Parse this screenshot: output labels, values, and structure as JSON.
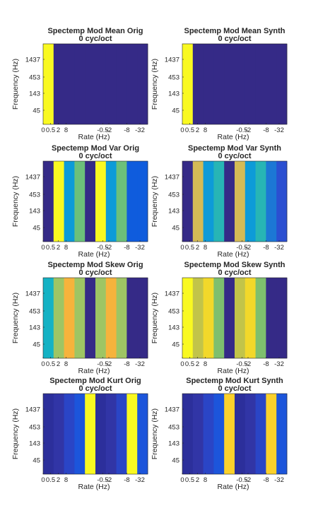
{
  "chart_data": [
    {
      "type": "heatmap",
      "title": "Spectemp Mod Mean Orig",
      "subtitle": "0 cyc/oct",
      "xlabel": "Rate (Hz)",
      "ylabel": "Frequency (Hz)",
      "x_ticks": [
        "0",
        "0.5",
        "2",
        "8",
        "-0.5",
        "-2",
        "-8",
        "-32"
      ],
      "y_ticks": [
        "1437",
        "453",
        "143",
        "45"
      ],
      "column_colors": [
        "#f9f921",
        "#352a87",
        "#352a87",
        "#352a87",
        "#352a87",
        "#352a87",
        "#352a87",
        "#352a87",
        "#352a87",
        "#352a87"
      ]
    },
    {
      "type": "heatmap",
      "title": "Spectemp Mod Mean Synth",
      "subtitle": "0 cyc/oct",
      "xlabel": "Rate (Hz)",
      "ylabel": "Frequency (Hz)",
      "x_ticks": [
        "0",
        "0.5",
        "2",
        "8",
        "-0.5",
        "-2",
        "-8",
        "-32"
      ],
      "y_ticks": [
        "1437",
        "453",
        "143",
        "45"
      ],
      "column_colors": [
        "#f9f921",
        "#352a87",
        "#352a87",
        "#352a87",
        "#352a87",
        "#352a87",
        "#352a87",
        "#352a87",
        "#352a87",
        "#352a87"
      ]
    },
    {
      "type": "heatmap",
      "title": "Spectemp Mod Var Orig",
      "subtitle": "0 cyc/oct",
      "xlabel": "Rate (Hz)",
      "ylabel": "Frequency (Hz)",
      "x_ticks": [
        "0",
        "0.5",
        "2",
        "8",
        "-0.5",
        "-2",
        "-8",
        "-32"
      ],
      "y_ticks": [
        "1437",
        "453",
        "143",
        "45"
      ],
      "column_colors": [
        "#352a87",
        "#f9f921",
        "#0d9bd8",
        "#6cc07a",
        "#352a87",
        "#f9f921",
        "#0d9bd8",
        "#6cc07a",
        "#0f5cdd",
        "#0f5cdd"
      ]
    },
    {
      "type": "heatmap",
      "title": "Spectemp Mod Var Synth",
      "subtitle": "0 cyc/oct",
      "xlabel": "Rate (Hz)",
      "ylabel": "Frequency (Hz)",
      "x_ticks": [
        "0",
        "0.5",
        "2",
        "8",
        "-0.5",
        "-2",
        "-8",
        "-32"
      ],
      "y_ticks": [
        "1437",
        "453",
        "143",
        "45"
      ],
      "column_colors": [
        "#352a87",
        "#d4bb56",
        "#0d9bd8",
        "#27b5b5",
        "#352a87",
        "#d4bb56",
        "#0d9bd8",
        "#27b5b5",
        "#1c77d5",
        "#2b4fd1"
      ]
    },
    {
      "type": "heatmap",
      "title": "Spectemp Mod Skew Orig",
      "subtitle": "0 cyc/oct",
      "xlabel": "Rate (Hz)",
      "ylabel": "Frequency (Hz)",
      "x_ticks": [
        "0",
        "0.5",
        "2",
        "8",
        "-0.5",
        "-2",
        "-8",
        "-32"
      ],
      "y_ticks": [
        "1437",
        "453",
        "143",
        "45"
      ],
      "column_colors": [
        "#14b2c4",
        "#9ec564",
        "#f6b33c",
        "#9ec564",
        "#352a87",
        "#9ec564",
        "#f6b33c",
        "#9ec564",
        "#352a87",
        "#352a87"
      ]
    },
    {
      "type": "heatmap",
      "title": "Spectemp Mod Skew Synth",
      "subtitle": "0 cyc/oct",
      "xlabel": "Rate (Hz)",
      "ylabel": "Frequency (Hz)",
      "x_ticks": [
        "0",
        "0.5",
        "2",
        "8",
        "-0.5",
        "-2",
        "-8",
        "-32"
      ],
      "y_ticks": [
        "1437",
        "453",
        "143",
        "45"
      ],
      "column_colors": [
        "#f9f921",
        "#c2c449",
        "#f2d82a",
        "#7ebf6e",
        "#352a87",
        "#c2c449",
        "#f2d82a",
        "#7ebf6e",
        "#352a87",
        "#352a87"
      ]
    },
    {
      "type": "heatmap",
      "title": "Spectemp Mod Kurt Orig",
      "subtitle": "0 cyc/oct",
      "xlabel": "Rate (Hz)",
      "ylabel": "Frequency (Hz)",
      "x_ticks": [
        "0",
        "0.5",
        "2",
        "8",
        "-0.5",
        "-2",
        "-8",
        "-32"
      ],
      "y_ticks": [
        "1437",
        "453",
        "143",
        "45"
      ],
      "column_colors": [
        "#2c2f9b",
        "#3135a6",
        "#2a45c6",
        "#1c55db",
        "#f9f921",
        "#2c2f9b",
        "#3135a6",
        "#2a45c6",
        "#f9f921",
        "#1c55db"
      ]
    },
    {
      "type": "heatmap",
      "title": "Spectemp Mod Kurt Synth",
      "subtitle": "0 cyc/oct",
      "xlabel": "Rate (Hz)",
      "ylabel": "Frequency (Hz)",
      "x_ticks": [
        "0",
        "0.5",
        "2",
        "8",
        "-0.5",
        "-2",
        "-8",
        "-32"
      ],
      "y_ticks": [
        "1437",
        "453",
        "143",
        "45"
      ],
      "column_colors": [
        "#2c2f9b",
        "#3135a6",
        "#2a45c6",
        "#1c55db",
        "#fbd12b",
        "#2c2f9b",
        "#3135a6",
        "#2a45c6",
        "#fbd12b",
        "#1c55db"
      ]
    }
  ]
}
